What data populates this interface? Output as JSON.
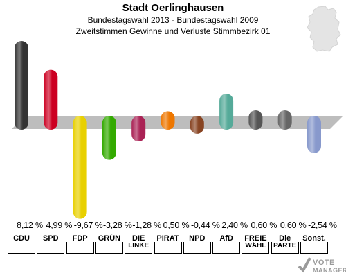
{
  "header": {
    "title": "Stadt Oerlinghausen",
    "subtitle": "Bundestagswahl 2013 - Bundestagswahl 2009",
    "subtitle2": "Zweitstimmen Gewinne und Verluste Stimmbezirk 01"
  },
  "chart_data": {
    "type": "bar",
    "categories": [
      "CDU",
      "SPD",
      "FDP",
      "GRÜNE",
      "DIE LINKE",
      "PIRATEN",
      "NPD",
      "AfD",
      "FREIE WÄHLER",
      "Die PARTEI",
      "Sonst."
    ],
    "category_labels": [
      {
        "line1": "CDU",
        "line2": ""
      },
      {
        "line1": "SPD",
        "line2": ""
      },
      {
        "line1": "FDP",
        "line2": ""
      },
      {
        "line1": "GRÜN",
        "line2": ""
      },
      {
        "line1": "DIE",
        "line2": "LINKE"
      },
      {
        "line1": "PIRAT",
        "line2": ""
      },
      {
        "line1": "NPD",
        "line2": ""
      },
      {
        "line1": "AfD",
        "line2": ""
      },
      {
        "line1": "FREIE",
        "line2": "WÄHL"
      },
      {
        "line1": "Die",
        "line2": "PARTE"
      },
      {
        "line1": "Sonst.",
        "line2": ""
      }
    ],
    "values": [
      8.12,
      4.99,
      -9.67,
      -3.28,
      -1.28,
      0.5,
      -0.44,
      2.4,
      0.6,
      0.6,
      -2.54
    ],
    "value_labels": [
      "8,12 %",
      "4,99 %",
      "-9,67 %",
      "-3,28 %",
      "-1,28 %",
      "0,50 %",
      "-0,44 %",
      "2,40 %",
      "0,60 %",
      "0,60 %",
      "-2,54 %"
    ],
    "colors": [
      "#333333",
      "#cc0022",
      "#e8d000",
      "#33aa00",
      "#aa2255",
      "#ee7700",
      "#884422",
      "#55aa99",
      "#555555",
      "#666666",
      "#8899cc"
    ],
    "unit": "%"
  },
  "branding": {
    "logo_top": "VOTE",
    "logo_bottom": "MANAGER"
  }
}
